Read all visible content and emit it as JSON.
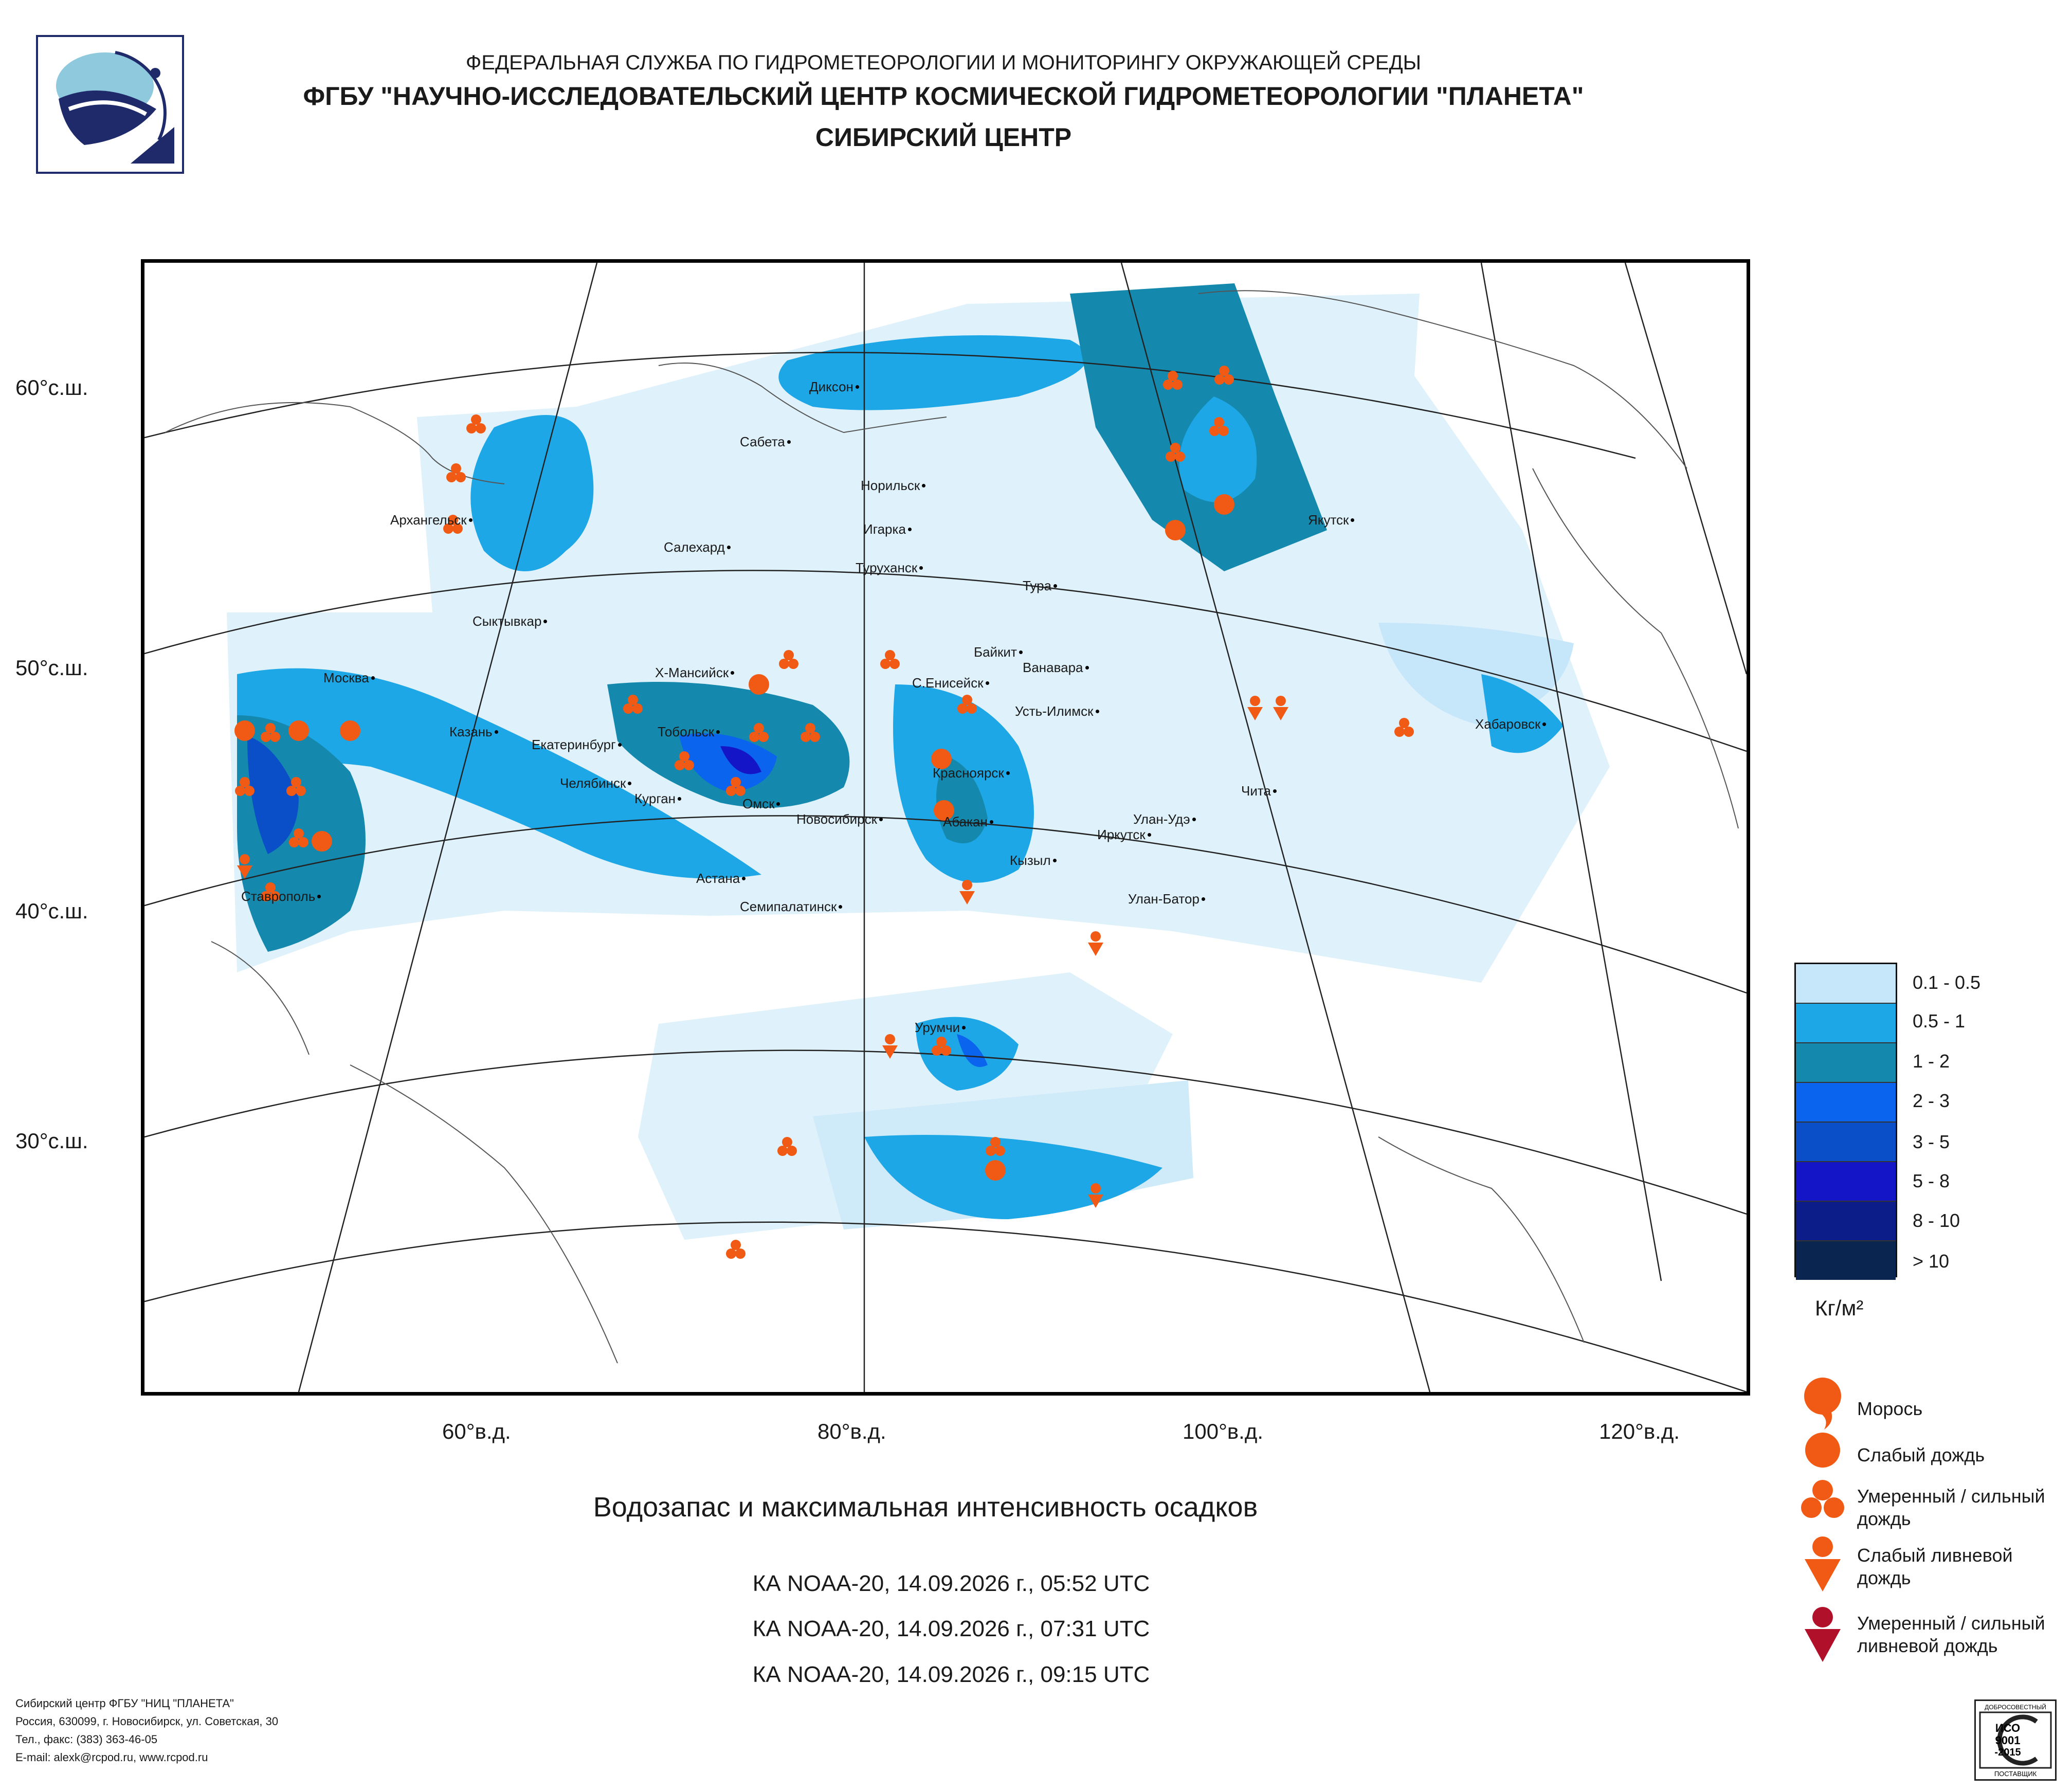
{
  "header": {
    "line1": "ФЕДЕРАЛЬНАЯ СЛУЖБА ПО ГИДРОМЕТЕОРОЛОГИИ И МОНИТОРИНГУ ОКРУЖАЮЩЕЙ СРЕДЫ",
    "line2": "ФГБУ \"НАУЧНО-ИССЛЕДОВАТЕЛЬСКИЙ ЦЕНТР КОСМИЧЕСКОЙ ГИДРОМЕТЕОРОЛОГИИ \"ПЛАНЕТА\"",
    "line3": "СИБИРСКИЙ ЦЕНТР"
  },
  "map": {
    "lat_labels": [
      "60°с.ш.",
      "50°с.ш.",
      "40°с.ш.",
      "30°с.ш."
    ],
    "lon_labels": [
      "60°в.д.",
      "80°в.д.",
      "100°в.д.",
      "120°в.д."
    ],
    "cities": [
      "Диксон",
      "Сабета",
      "Норильск",
      "Игарка",
      "Салехард",
      "Туруханск",
      "Тура",
      "Архангельск",
      "Якутск",
      "Сыктывкар",
      "Байкит",
      "Ванавара",
      "Москва",
      "Х-Мансийск",
      "С.Енисейск",
      "Усть-Илимск",
      "Казань",
      "Екатеринбург",
      "Тобольск",
      "Хабаровск",
      "Челябинск",
      "Курган",
      "Красноярск",
      "Омск",
      "Чита",
      "Новосибирск",
      "Абакан",
      "Улан-Удэ",
      "Иркутск",
      "Кызыл",
      "Астана",
      "Ставрополь",
      "Семипалатинск",
      "Улан-Батор",
      "Урумчи"
    ]
  },
  "legend": {
    "scale": [
      {
        "label": "0.1 - 0.5",
        "color": "#c6e6fa"
      },
      {
        "label": "0.5 - 1",
        "color": "#1ea7e6"
      },
      {
        "label": "1 - 2",
        "color": "#1488ad"
      },
      {
        "label": "2 - 3",
        "color": "#0b64ee"
      },
      {
        "label": "3 - 5",
        "color": "#0a4fc8"
      },
      {
        "label": "5 - 8",
        "color": "#1515c8"
      },
      {
        "label": "8 - 10",
        "color": "#0c1c88"
      },
      {
        "label": "> 10",
        "color": "#0a2550"
      }
    ],
    "unit": "Кг/м²",
    "symbols": [
      {
        "label": "Морось"
      },
      {
        "label": "Слабый дождь"
      },
      {
        "label": "Умеренный / сильный дождь"
      },
      {
        "label": "Слабый ливневой дождь"
      },
      {
        "label": "Умеренный / сильный ливневой дождь"
      }
    ],
    "symbol_color": "#f05a14",
    "shower_heavy_color": "#b0102a"
  },
  "caption": "Водозапас и максимальная интенсивность осадков",
  "passes": [
    "КА NOAA-20, 14.09.2026 г., 05:52 UTC",
    "КА NOAA-20, 14.09.2026 г., 07:31 UTC",
    "КА NOAA-20, 14.09.2026 г., 09:15 UTC"
  ],
  "footer": {
    "line1": "Сибирский центр ФГБУ \"НИЦ \"ПЛАНЕТА\"",
    "line2": "Россия, 630099, г. Новосибирск, ул. Советская, 30",
    "line3": "Тел., факс: (383) 363-46-05",
    "line4": "E-mail: alexk@rcpod.ru, www.rcpod.ru"
  },
  "iso": {
    "top": "ДОБРОСОВЕСТНЫЙ",
    "mid1": "ИСО",
    "mid2": "9001",
    "mid3": "-2015",
    "bottom": "ПОСТАВЩИК"
  }
}
